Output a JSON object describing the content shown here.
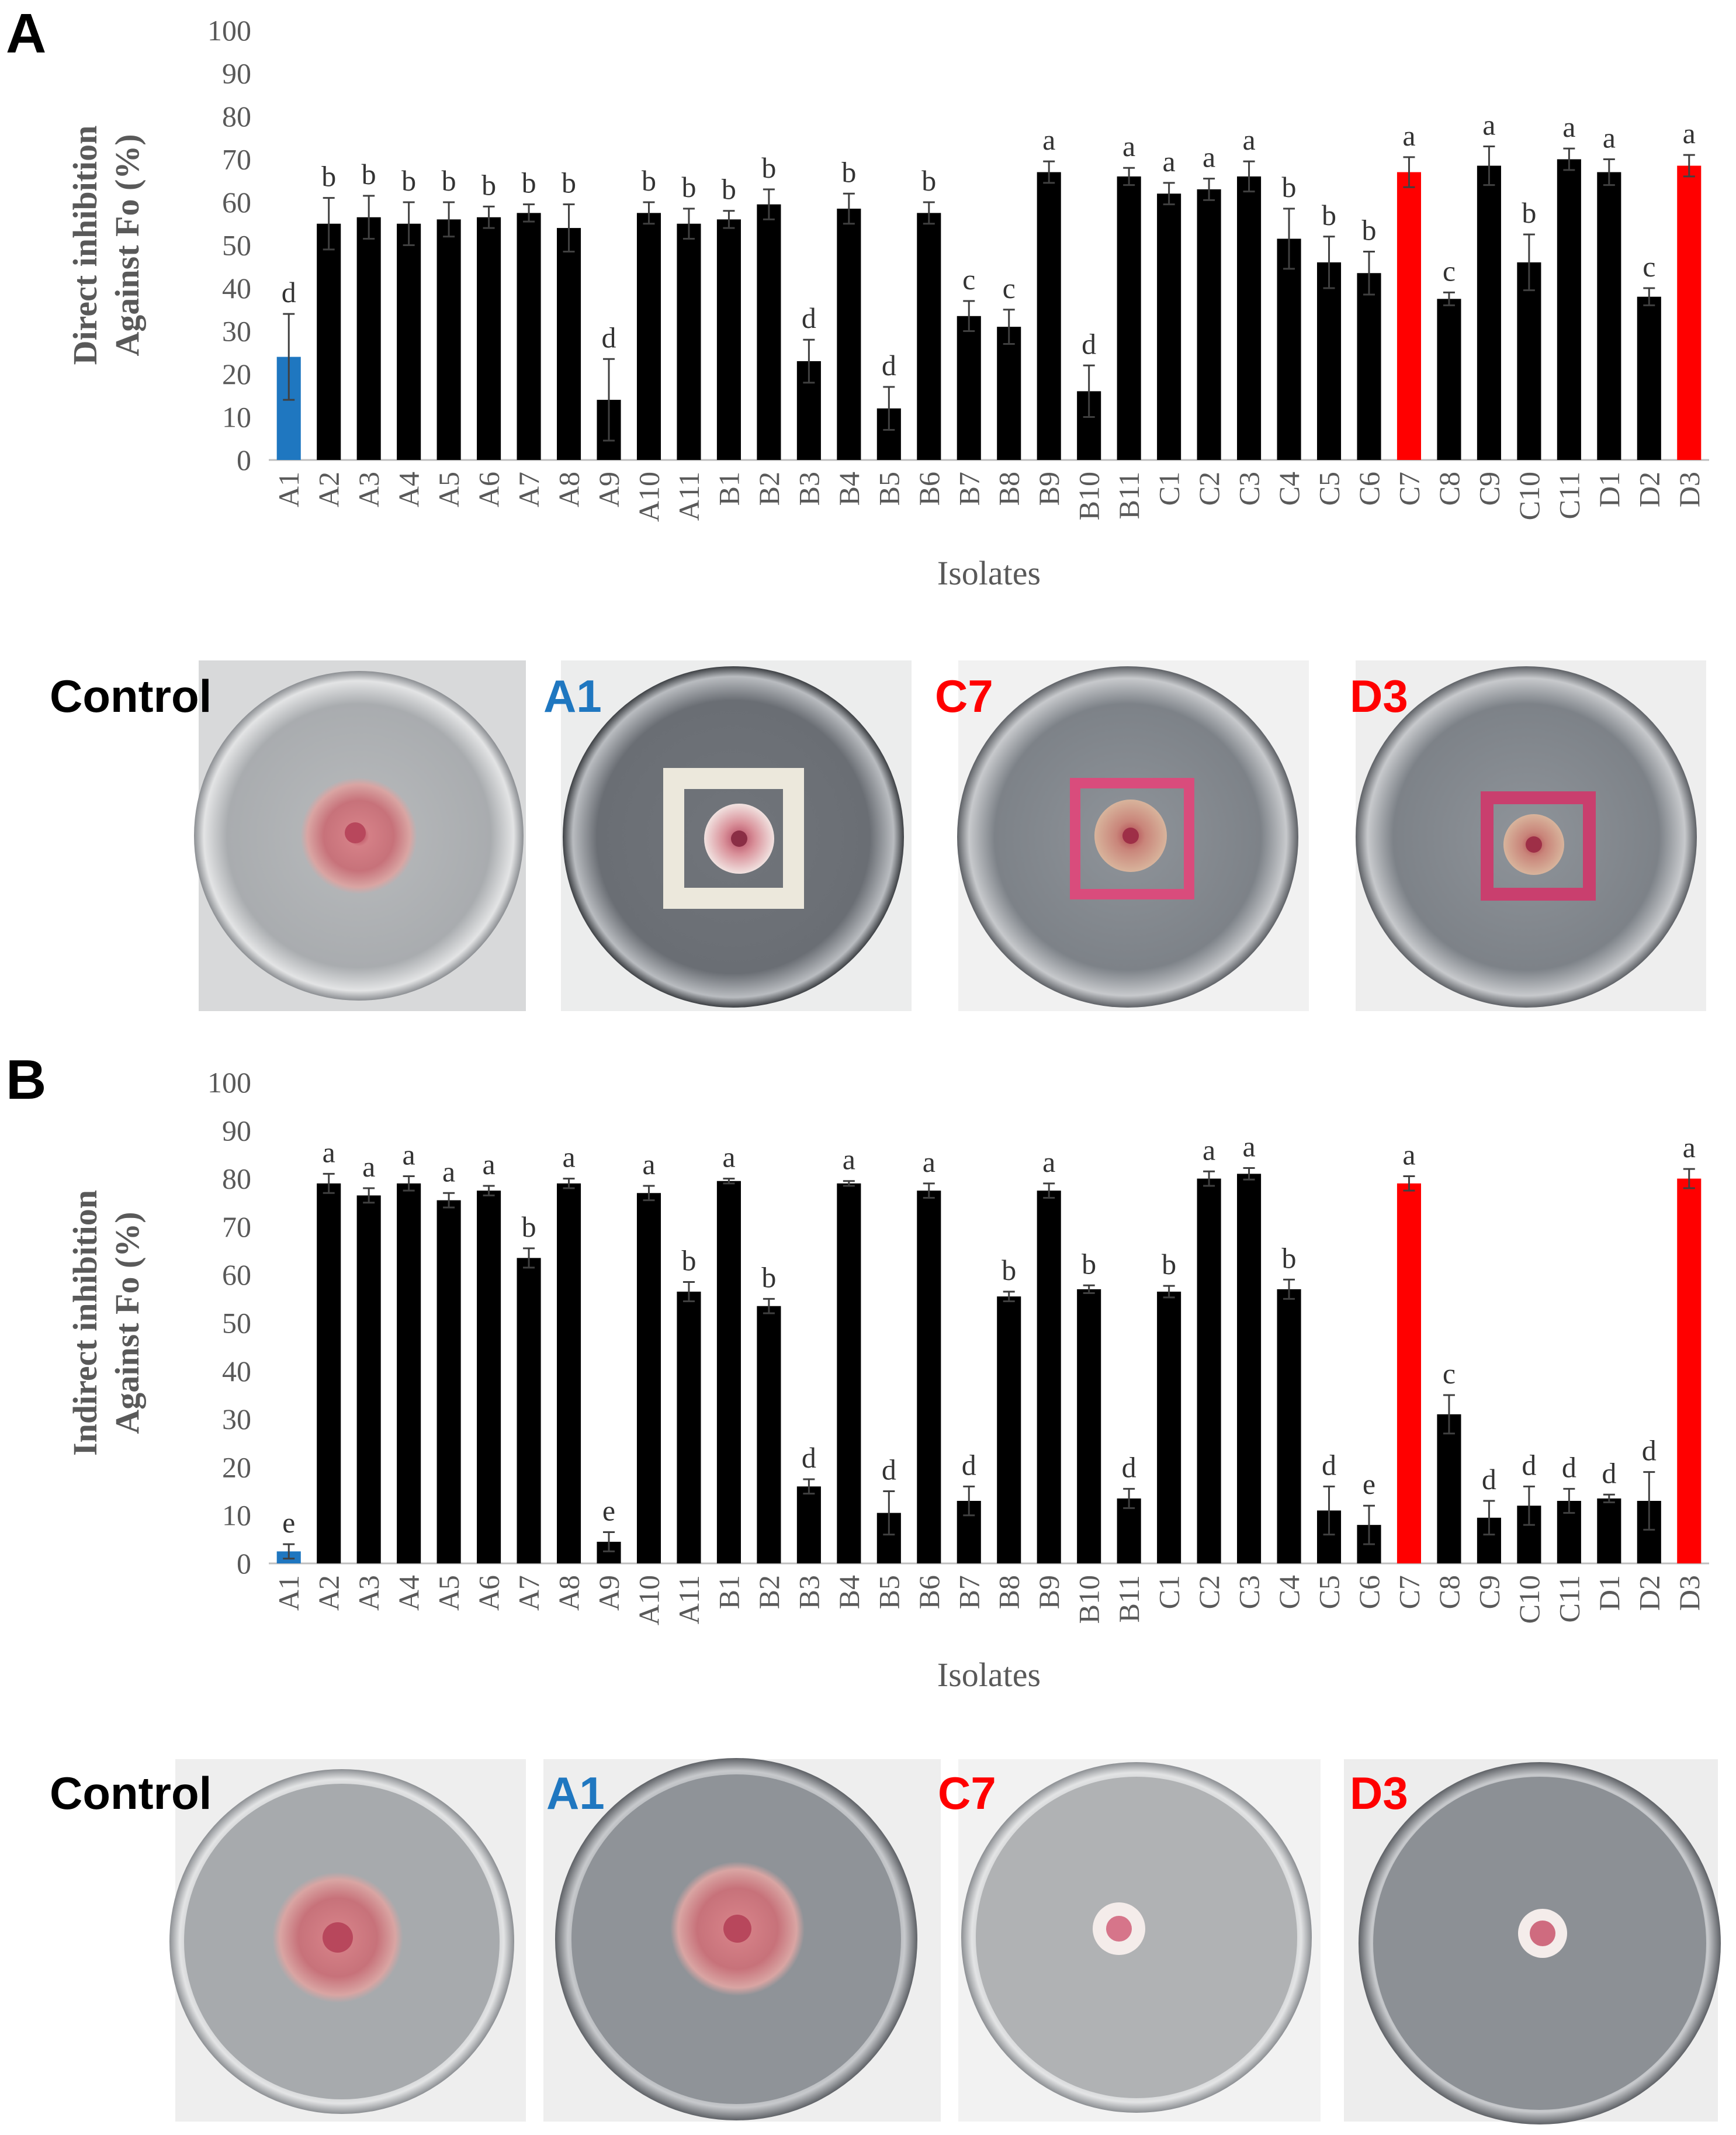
{
  "colors": {
    "bar": "#000000",
    "highlight_blue": "#1f77c0",
    "highlight_red": "#ff0000",
    "axis_text": "#595959"
  },
  "chart_data": [
    {
      "type": "bar",
      "panel": "A",
      "xlabel": "Isolates",
      "ylabel": [
        "Direct inhibition",
        "Against Fo (%)"
      ],
      "ylim": [
        0,
        100
      ],
      "yticks": [
        0,
        10,
        20,
        30,
        40,
        50,
        60,
        70,
        80,
        90,
        100
      ],
      "grid": false,
      "categories": [
        "A1",
        "A2",
        "A3",
        "A4",
        "A5",
        "A6",
        "A7",
        "A8",
        "A9",
        "A10",
        "A11",
        "B1",
        "B2",
        "B3",
        "B4",
        "B5",
        "B6",
        "B7",
        "B8",
        "B9",
        "B10",
        "B11",
        "C1",
        "C2",
        "C3",
        "C4",
        "C5",
        "C6",
        "C7",
        "C8",
        "C9",
        "C10",
        "C11",
        "D1",
        "D2",
        "D3"
      ],
      "values": [
        24,
        55,
        56.5,
        55,
        56,
        56.5,
        57.5,
        54,
        14,
        57.5,
        55,
        56,
        59.5,
        23,
        58.5,
        12,
        57.5,
        33.5,
        31,
        67,
        16,
        66,
        62,
        63,
        66,
        51.5,
        46,
        43.5,
        67,
        37.5,
        68.5,
        46,
        70,
        67,
        38,
        68.5
      ],
      "errors": [
        10,
        6,
        5,
        5,
        4,
        2.5,
        2,
        5.5,
        9.5,
        2.5,
        3.5,
        2,
        3.5,
        5,
        3.5,
        5,
        2.5,
        3.5,
        4,
        2.5,
        6,
        2,
        2.5,
        2.5,
        3.5,
        7,
        6,
        5,
        3.5,
        1.5,
        4.5,
        6.5,
        2.5,
        3,
        2,
        2.5
      ],
      "letters": [
        "d",
        "b",
        "b",
        "b",
        "b",
        "b",
        "b",
        "b",
        "d",
        "b",
        "b",
        "b",
        "b",
        "d",
        "b",
        "d",
        "b",
        "c",
        "c",
        "a",
        "d",
        "a",
        "a",
        "a",
        "a",
        "b",
        "b",
        "b",
        "a",
        "c",
        "a",
        "b",
        "a",
        "a",
        "c",
        "a"
      ],
      "highlight": {
        "A1": "blue",
        "C7": "red",
        "D3": "red"
      }
    },
    {
      "type": "bar",
      "panel": "B",
      "xlabel": "Isolates",
      "ylabel": [
        "Indirect inhibition",
        "Against Fo (%)"
      ],
      "ylim": [
        0,
        100
      ],
      "yticks": [
        0,
        10,
        20,
        30,
        40,
        50,
        60,
        70,
        80,
        90,
        100
      ],
      "grid": false,
      "categories": [
        "A1",
        "A2",
        "A3",
        "A4",
        "A5",
        "A6",
        "A7",
        "A8",
        "A9",
        "A10",
        "A11",
        "B1",
        "B2",
        "B3",
        "B4",
        "B5",
        "B6",
        "B7",
        "B8",
        "B9",
        "B10",
        "B11",
        "C1",
        "C2",
        "C3",
        "C4",
        "C5",
        "C6",
        "C7",
        "C8",
        "C9",
        "C10",
        "C11",
        "D1",
        "D2",
        "D3"
      ],
      "values": [
        2.5,
        79,
        76.5,
        79,
        75.5,
        77.5,
        63.5,
        79,
        4.5,
        77,
        56.5,
        79.5,
        53.5,
        16,
        79,
        10.5,
        77.5,
        13,
        55.5,
        77.5,
        57,
        13.5,
        56.5,
        80,
        81,
        57,
        11,
        8,
        79,
        31,
        9.5,
        12,
        13,
        13.5,
        13,
        80
      ],
      "errors": [
        1.5,
        2,
        1.5,
        1.5,
        1.5,
        1,
        2,
        1,
        2,
        1.5,
        2,
        0.5,
        1.5,
        1.5,
        0.5,
        4.5,
        1.5,
        3,
        1,
        1.5,
        0.8,
        2,
        1.2,
        1.5,
        1.2,
        2,
        5,
        4,
        1.5,
        4,
        3.5,
        4,
        2.5,
        0.8,
        6,
        2
      ],
      "letters": [
        "e",
        "a",
        "a",
        "a",
        "a",
        "a",
        "b",
        "a",
        "e",
        "a",
        "b",
        "a",
        "b",
        "d",
        "a",
        "d",
        "a",
        "d",
        "b",
        "a",
        "b",
        "d",
        "b",
        "a",
        "a",
        "b",
        "d",
        "e",
        "a",
        "c",
        "d",
        "d",
        "d",
        "d",
        "d",
        "a"
      ],
      "highlight": {
        "A1": "blue",
        "C7": "red",
        "D3": "red"
      }
    }
  ],
  "plates": {
    "direct": [
      {
        "label": "Control",
        "color": "#000000"
      },
      {
        "label": "A1",
        "color": "#1f77c0"
      },
      {
        "label": "C7",
        "color": "#ff0000"
      },
      {
        "label": "D3",
        "color": "#ff0000"
      }
    ],
    "indirect": [
      {
        "label": "Control",
        "color": "#000000"
      },
      {
        "label": "A1",
        "color": "#1f77c0"
      },
      {
        "label": "C7",
        "color": "#ff0000"
      },
      {
        "label": "D3",
        "color": "#ff0000"
      }
    ]
  }
}
